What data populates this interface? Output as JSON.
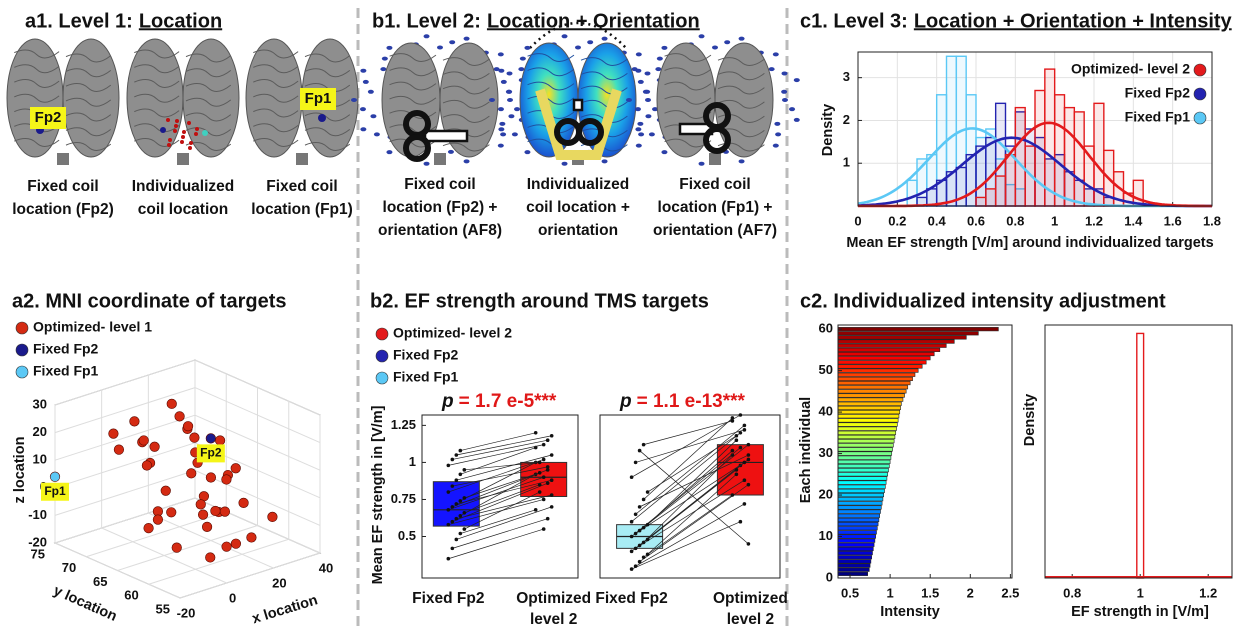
{
  "a1": {
    "title": "a1. Level 1:",
    "title_underlined": "Location",
    "tags": [
      "Fp2",
      "Fp1"
    ],
    "captions": [
      [
        "Fixed coil",
        "location (Fp2)"
      ],
      [
        "Individualized",
        "coil location"
      ],
      [
        "Fixed coil",
        "location (Fp1)"
      ]
    ]
  },
  "b1": {
    "title": "b1. Level 2:",
    "title_underlined": "Location + Orientation",
    "captions": [
      [
        "Fixed coil",
        "location (Fp2) +",
        "orientation (AF8)"
      ],
      [
        "Individualized",
        "coil location +",
        "orientation"
      ],
      [
        "Fixed coil",
        "location (Fp1) +",
        "orientation (AF7)"
      ]
    ]
  },
  "c1": {
    "title": "c1. Level 3:",
    "title_underlined": "Location + Orientation + Intensity"
  },
  "chart_data": [
    {
      "type": "histogram",
      "xlabel": "Mean EF strength [V/m] around individualized targets",
      "ylabel": "Density",
      "xlim": [
        0,
        1.8
      ],
      "ylim": [
        0,
        3.6
      ],
      "xticks": [
        0,
        0.2,
        0.4,
        0.6,
        0.8,
        1,
        1.2,
        1.4,
        1.6,
        1.8
      ],
      "yticks": [
        1,
        2,
        3
      ],
      "grid": true,
      "legend": "upper right",
      "series": [
        {
          "name": "Optimized- level 2",
          "color": "#e31a1c",
          "fit": {
            "mean": 0.97,
            "sd": 0.205
          },
          "bins": [
            0.6,
            0.65,
            0.7,
            0.75,
            0.8,
            0.85,
            0.9,
            0.95,
            1,
            1.05,
            1.1,
            1.15,
            1.2,
            1.25,
            1.3,
            1.35,
            1.4,
            1.45
          ],
          "values": [
            0.2,
            0.4,
            0.7,
            1.2,
            2.3,
            1.4,
            2.7,
            3.2,
            2.6,
            2.3,
            2.2,
            1.4,
            2.4,
            1.3,
            0.8,
            0.3,
            0.6
          ]
        },
        {
          "name": "Fixed Fp2",
          "color": "#2323b0",
          "fit": {
            "mean": 0.78,
            "sd": 0.25
          },
          "bins": [
            0.3,
            0.35,
            0.4,
            0.45,
            0.5,
            0.55,
            0.6,
            0.65,
            0.7,
            0.75,
            0.8,
            0.85,
            0.9,
            0.95,
            1,
            1.05,
            1.1,
            1.15,
            1.2,
            1.25,
            1.3
          ],
          "values": [
            0.2,
            0.4,
            0.6,
            0.8,
            0.9,
            1.2,
            1.4,
            1.6,
            2.4,
            1.4,
            2.2,
            1.8,
            1.6,
            1.1,
            1.2,
            0.8,
            0.6,
            0.4,
            0.4,
            0.2
          ]
        },
        {
          "name": "Fixed Fp1",
          "color": "#5bc8f5",
          "fit": {
            "mean": 0.58,
            "sd": 0.22
          },
          "bins": [
            0.25,
            0.3,
            0.35,
            0.4,
            0.45,
            0.5,
            0.55,
            0.6,
            0.65,
            0.7,
            0.75,
            0.8,
            0.85
          ],
          "values": [
            0.6,
            1.1,
            1.2,
            2.6,
            3.5,
            3.5,
            2.6,
            1.6,
            1.8,
            1.1,
            0.5,
            0.4
          ]
        }
      ]
    },
    {
      "type": "scatter3d",
      "title": "a2. MNI coordinate of targets",
      "xlabel": "x location",
      "ylabel": "y location",
      "zlabel": "z location",
      "xlim": [
        -20,
        40
      ],
      "ylim": [
        55,
        75
      ],
      "zlim": [
        -20,
        30
      ],
      "xticks": [
        -20,
        0,
        20,
        40
      ],
      "yticks": [
        55,
        60,
        65,
        70,
        75
      ],
      "zticks": [
        -20,
        -10,
        0,
        10,
        20,
        30
      ],
      "grid": true,
      "series": [
        {
          "name": "Optimized- level 1",
          "color": "#d42a12",
          "x": [
            -8,
            -5,
            -2,
            0,
            2,
            4,
            6,
            8,
            10,
            12,
            14,
            16,
            18,
            20,
            22,
            24,
            26,
            28,
            30,
            32,
            -6,
            -3,
            1,
            5,
            9,
            13,
            17,
            21,
            25,
            29,
            33,
            0,
            6,
            12,
            18,
            24,
            30,
            -4,
            10,
            20
          ],
          "y": [
            60,
            62,
            64,
            66,
            68,
            70,
            72,
            58,
            60,
            62,
            64,
            66,
            68,
            70,
            72,
            60,
            62,
            64,
            66,
            68,
            70,
            72,
            58,
            60,
            62,
            64,
            66,
            68,
            70,
            72,
            60,
            66,
            70,
            58,
            62,
            64,
            68,
            66,
            72,
            74
          ],
          "z": [
            -10,
            0,
            5,
            -5,
            10,
            15,
            20,
            -12,
            -2,
            8,
            -8,
            12,
            18,
            20,
            22,
            -15,
            -5,
            5,
            0,
            10,
            15,
            18,
            -14,
            -6,
            2,
            -4,
            8,
            14,
            -2,
            12,
            -10,
            -8,
            6,
            -12,
            -6,
            2,
            -15,
            -10,
            12,
            5
          ]
        },
        {
          "name": "Fixed Fp2",
          "color": "#1a1a8c",
          "tag": "Fp2",
          "x": [
            20
          ],
          "y": [
            65
          ],
          "z": [
            17
          ]
        },
        {
          "name": "Fixed Fp1",
          "color": "#5bc8f5",
          "tag": "Fp1",
          "x": [
            -20
          ],
          "y": [
            75
          ],
          "z": [
            4
          ]
        }
      ]
    },
    {
      "type": "box",
      "title": "b2. EF strength around TMS targets",
      "ylabel": "Mean  EF strength in [V/m]",
      "ylim": [
        0.22,
        1.32
      ],
      "yticks": [
        0.5,
        0.75,
        1,
        1.25
      ],
      "legend": [
        {
          "name": "Optimized- level 2",
          "color": "#e31a1c"
        },
        {
          "name": "Fixed Fp2",
          "color": "#2323b0"
        },
        {
          "name": "Fixed Fp1",
          "color": "#5bc8f5"
        }
      ],
      "panels": [
        {
          "annotation": {
            "symbol": "p",
            "text": "= 1.7 e-5***"
          },
          "categories": [
            [
              "Fixed Fp2"
            ],
            [
              "Optimized",
              "level 2"
            ]
          ],
          "boxes": [
            {
              "q1": 0.57,
              "median": 0.68,
              "q3": 0.87,
              "color": "#1414ff"
            },
            {
              "q1": 0.77,
              "median": 0.9,
              "q3": 1.0,
              "color": "#ee1111"
            }
          ],
          "pairs": [
            [
              0.35,
              0.55
            ],
            [
              0.42,
              0.62
            ],
            [
              0.48,
              0.7
            ],
            [
              0.52,
              0.68
            ],
            [
              0.55,
              0.8
            ],
            [
              0.58,
              0.75
            ],
            [
              0.6,
              0.86
            ],
            [
              0.62,
              0.78
            ],
            [
              0.64,
              0.92
            ],
            [
              0.66,
              0.85
            ],
            [
              0.68,
              0.9
            ],
            [
              0.7,
              0.95
            ],
            [
              0.72,
              0.88
            ],
            [
              0.74,
              1.0
            ],
            [
              0.76,
              0.93
            ],
            [
              0.8,
              1.02
            ],
            [
              0.84,
              0.97
            ],
            [
              0.88,
              1.05
            ],
            [
              0.92,
              1.1
            ],
            [
              0.95,
              1.0
            ],
            [
              0.98,
              1.12
            ],
            [
              1.02,
              1.15
            ],
            [
              1.05,
              1.18
            ],
            [
              1.08,
              1.2
            ]
          ]
        },
        {
          "annotation": {
            "symbol": "p",
            "text": "= 1.1 e-13***"
          },
          "categories": [
            [
              "Fixed Fp2"
            ],
            [
              "Optimized",
              "level 2"
            ]
          ],
          "boxes": [
            {
              "q1": 0.42,
              "median": 0.5,
              "q3": 0.58,
              "color": "#a8ecf4"
            },
            {
              "q1": 0.78,
              "median": 1.0,
              "q3": 1.12,
              "color": "#ee1111"
            }
          ],
          "pairs": [
            [
              0.28,
              0.6
            ],
            [
              0.3,
              0.72
            ],
            [
              0.33,
              0.85
            ],
            [
              0.36,
              0.78
            ],
            [
              0.38,
              0.92
            ],
            [
              0.4,
              0.98
            ],
            [
              0.42,
              0.88
            ],
            [
              0.44,
              1.02
            ],
            [
              0.46,
              1.05
            ],
            [
              0.48,
              0.95
            ],
            [
              0.5,
              1.1
            ],
            [
              0.52,
              1.0
            ],
            [
              0.54,
              1.12
            ],
            [
              0.56,
              1.08
            ],
            [
              0.58,
              1.15
            ],
            [
              0.6,
              1.2
            ],
            [
              0.65,
              1.25
            ],
            [
              0.7,
              1.05
            ],
            [
              0.75,
              1.3
            ],
            [
              0.8,
              1.18
            ],
            [
              0.9,
              1.32
            ],
            [
              1.0,
              1.22
            ],
            [
              1.08,
              0.45
            ],
            [
              1.12,
              1.28
            ]
          ]
        }
      ]
    },
    {
      "type": "barh",
      "title": "c2. Individualized intensity adjustment",
      "xlabel": "Intensity",
      "ylabel": "Each individual",
      "xlim": [
        0.35,
        2.52
      ],
      "ylim": [
        0,
        61
      ],
      "xticks": [
        0.5,
        1,
        1.5,
        2,
        2.5
      ],
      "yticks": [
        0,
        10,
        20,
        30,
        40,
        50,
        60
      ],
      "colormap": "jet",
      "y": [
        1,
        2,
        3,
        4,
        5,
        6,
        7,
        8,
        9,
        10,
        11,
        12,
        13,
        14,
        15,
        16,
        17,
        18,
        19,
        20,
        21,
        22,
        23,
        24,
        25,
        26,
        27,
        28,
        29,
        30,
        31,
        32,
        33,
        34,
        35,
        36,
        37,
        38,
        39,
        40,
        41,
        42,
        43,
        44,
        45,
        46,
        47,
        48,
        49,
        50,
        51,
        52,
        53,
        54,
        55,
        56,
        57,
        58,
        59,
        60
      ],
      "values": [
        0.72,
        0.74,
        0.75,
        0.76,
        0.77,
        0.78,
        0.79,
        0.8,
        0.81,
        0.82,
        0.83,
        0.84,
        0.85,
        0.86,
        0.87,
        0.88,
        0.89,
        0.9,
        0.91,
        0.92,
        0.93,
        0.94,
        0.95,
        0.96,
        0.97,
        0.98,
        0.99,
        1.0,
        1.01,
        1.02,
        1.03,
        1.04,
        1.05,
        1.06,
        1.07,
        1.08,
        1.09,
        1.1,
        1.11,
        1.12,
        1.13,
        1.14,
        1.16,
        1.18,
        1.2,
        1.22,
        1.25,
        1.28,
        1.31,
        1.35,
        1.4,
        1.45,
        1.5,
        1.55,
        1.62,
        1.7,
        1.8,
        1.95,
        2.1,
        2.35
      ]
    },
    {
      "type": "histogram",
      "xlabel": "EF strength in [V/m]",
      "ylabel": "Density",
      "xlim": [
        0.72,
        1.27
      ],
      "ylim": [
        0,
        60
      ],
      "xticks": [
        0.8,
        1,
        1.2
      ],
      "color": "#e41a1c",
      "bins": [
        0.99,
        1.01
      ],
      "values": [
        58
      ]
    }
  ]
}
